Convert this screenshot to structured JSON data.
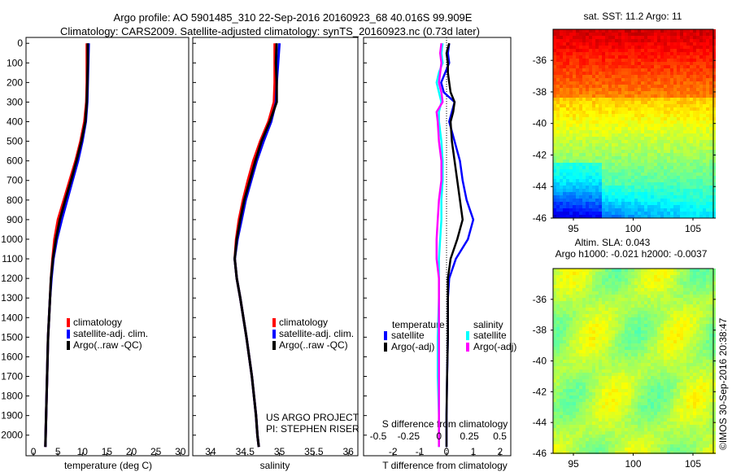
{
  "title_line1": "Argo profile: AO 5901485_310 22-Sep-2016 20160923_68 40.016S 99.909E",
  "title_line2": "Climatology: CARS2009. Satellite-adjusted climatology: synTS_20160923.nc (0.73d later)",
  "colors": {
    "climatology": "#ff0000",
    "satellite": "#0000ff",
    "argo": "#000000",
    "sal_satellite": "#00ffff",
    "sal_argo": "#ff00ff"
  },
  "chart_data": [
    {
      "type": "line",
      "id": "temperature",
      "xlabel": "temperature (deg C)",
      "xlim": [
        -1.5,
        31.7
      ],
      "xticks": [
        0,
        5,
        10,
        15,
        20,
        25,
        30
      ],
      "ylim": [
        -30,
        2105
      ],
      "yticks": [
        0,
        100,
        200,
        300,
        400,
        500,
        600,
        700,
        800,
        900,
        1000,
        1100,
        1200,
        1300,
        1400,
        1500,
        1600,
        1700,
        1800,
        1900,
        2000
      ],
      "depth": [
        0,
        100,
        200,
        300,
        400,
        500,
        600,
        700,
        800,
        900,
        1000,
        1100,
        1200,
        1300,
        1400,
        1500,
        1700,
        1900,
        2000,
        2060
      ],
      "series": [
        {
          "name": "climatology",
          "color_key": "climatology",
          "values": [
            10.9,
            10.9,
            10.9,
            10.8,
            10.4,
            9.6,
            8.6,
            7.4,
            6.2,
            5.0,
            4.3,
            3.9,
            3.6,
            3.4,
            3.2,
            3.0,
            2.8,
            2.6,
            2.5,
            2.45
          ]
        },
        {
          "name": "satellite-adj. clim.",
          "color_key": "satellite",
          "values": [
            11.3,
            11.2,
            11.1,
            11.0,
            10.7,
            10.0,
            9.1,
            8.0,
            6.9,
            5.8,
            4.8,
            4.1,
            3.7,
            3.4,
            3.2,
            3.0,
            2.8,
            2.6,
            2.5,
            2.45
          ]
        },
        {
          "name": "Argo(..raw -QC)",
          "color_key": "argo",
          "values": [
            11.1,
            11.1,
            11.0,
            10.9,
            10.6,
            9.8,
            8.8,
            7.7,
            6.5,
            5.4,
            4.6,
            4.0,
            3.6,
            3.4,
            3.2,
            3.0,
            2.8,
            2.6,
            2.5,
            2.45
          ]
        }
      ]
    },
    {
      "type": "line",
      "id": "salinity",
      "xlabel": "salinity",
      "xlim": [
        33.74,
        36.14
      ],
      "xticks": [
        34,
        34.5,
        35,
        35.5,
        36
      ],
      "ylim": [
        -30,
        2105
      ],
      "depth": [
        0,
        100,
        200,
        300,
        400,
        500,
        600,
        700,
        800,
        900,
        1000,
        1100,
        1200,
        1300,
        1500,
        1700,
        1900,
        2000,
        2060
      ],
      "series": [
        {
          "name": "climatology",
          "color_key": "climatology",
          "values": [
            34.93,
            34.93,
            34.93,
            34.92,
            34.84,
            34.72,
            34.62,
            34.54,
            34.47,
            34.41,
            34.37,
            34.35,
            34.38,
            34.43,
            34.52,
            34.6,
            34.66,
            34.68,
            34.7
          ],
          "_": ""
        },
        {
          "name": "satellite-adj. clim.",
          "color_key": "satellite",
          "values": [
            35.0,
            34.98,
            34.96,
            34.95,
            34.88,
            34.77,
            34.67,
            34.59,
            34.51,
            34.45,
            34.39,
            34.35,
            34.38,
            34.43,
            34.52,
            34.6,
            34.66,
            34.68,
            34.7
          ]
        },
        {
          "name": "Argo(..raw -QC)",
          "color_key": "argo",
          "values": [
            34.96,
            34.95,
            34.96,
            34.96,
            34.86,
            34.74,
            34.65,
            34.57,
            34.49,
            34.43,
            34.38,
            34.35,
            34.38,
            34.43,
            34.52,
            34.6,
            34.66,
            34.68,
            34.7
          ]
        }
      ],
      "annotation_line1": "US ARGO PROJECT",
      "annotation_line2": "PI: STEPHEN RISER"
    },
    {
      "type": "line",
      "id": "difference",
      "xlabel": "T difference from climatology",
      "xlim": [
        -3.1,
        2.4
      ],
      "xticks": [
        -2,
        -1,
        0,
        1,
        2
      ],
      "x2label": "S difference from climatology",
      "x2lim": [
        -0.62,
        0.59
      ],
      "x2ticks": [
        -0.5,
        -0.25,
        0,
        0.25,
        0.5
      ],
      "x2ticklabels": [
        "-0.5",
        "-0.25",
        "0",
        "0.25",
        "0.5"
      ],
      "ylim": [
        -30,
        2105
      ],
      "depth": [
        0,
        50,
        100,
        150,
        200,
        250,
        300,
        350,
        400,
        500,
        600,
        700,
        800,
        900,
        1000,
        1100,
        1200,
        1300,
        1500,
        1700,
        1900,
        2060
      ],
      "series": [
        {
          "name": "satellite",
          "group": "temperature",
          "color_key": "satellite",
          "axis": "T",
          "values": [
            0.1,
            0.05,
            0.1,
            -0.05,
            -0.2,
            -0.1,
            0.3,
            0.2,
            0.1,
            0.3,
            0.5,
            0.6,
            0.75,
            1.0,
            0.8,
            0.35,
            0.1,
            0.05,
            0.05,
            0.02,
            0.0,
            0.0
          ]
        },
        {
          "name": "Argo(-adj)",
          "group": "temperature",
          "color_key": "argo",
          "axis": "T",
          "values": [
            0.1,
            0.0,
            0.05,
            0.05,
            0.1,
            0.15,
            0.3,
            0.25,
            0.15,
            0.2,
            0.3,
            0.4,
            0.5,
            0.6,
            0.4,
            0.15,
            0.05,
            0.05,
            0.05,
            0.02,
            0.0,
            0.0
          ]
        },
        {
          "name": "satellite",
          "group": "salinity",
          "color_key": "sal_satellite",
          "axis": "S",
          "values": [
            0.03,
            0.02,
            0.03,
            0.0,
            -0.02,
            0.0,
            0.02,
            0.0,
            0.0,
            0.02,
            0.03,
            0.03,
            0.02,
            0.02,
            0.01,
            0.0,
            0.0,
            0.0,
            -0.01,
            -0.01,
            0.0,
            0.0
          ]
        },
        {
          "name": "Argo(-adj)",
          "group": "salinity",
          "color_key": "sal_argo",
          "axis": "S",
          "values": [
            0.02,
            0.01,
            0.02,
            0.01,
            0.0,
            0.02,
            0.03,
            -0.02,
            -0.01,
            0.0,
            0.02,
            0.02,
            0.0,
            -0.01,
            -0.02,
            -0.02,
            0.0,
            0.0,
            0.0,
            0.0,
            0.0,
            0.0
          ]
        }
      ],
      "legend_titles": [
        "temperature",
        "salinity"
      ]
    },
    {
      "type": "heatmap",
      "id": "sst-map",
      "title": "sat. SST: 11.2 Argo: 11",
      "xlim": [
        93.3,
        106.7
      ],
      "xticks": [
        95,
        100,
        105
      ],
      "ylim": [
        -46,
        -34.03
      ],
      "yticks": [
        -36,
        -38,
        -40,
        -42,
        -44,
        -46
      ]
    },
    {
      "type": "heatmap",
      "id": "sla-map",
      "title_line1": "Altim. SLA: 0.043",
      "title_line2": "Argo h1000: -0.021 h2000: -0.0037",
      "xlim": [
        93.3,
        106.7
      ],
      "xticks": [
        95,
        100,
        105
      ],
      "ylim": [
        -46,
        -34
      ],
      "yticks": [
        -36,
        -38,
        -40,
        -42,
        -44,
        -46
      ]
    }
  ],
  "credit": "©IMOS 30-Sep-2016 20:38:47"
}
